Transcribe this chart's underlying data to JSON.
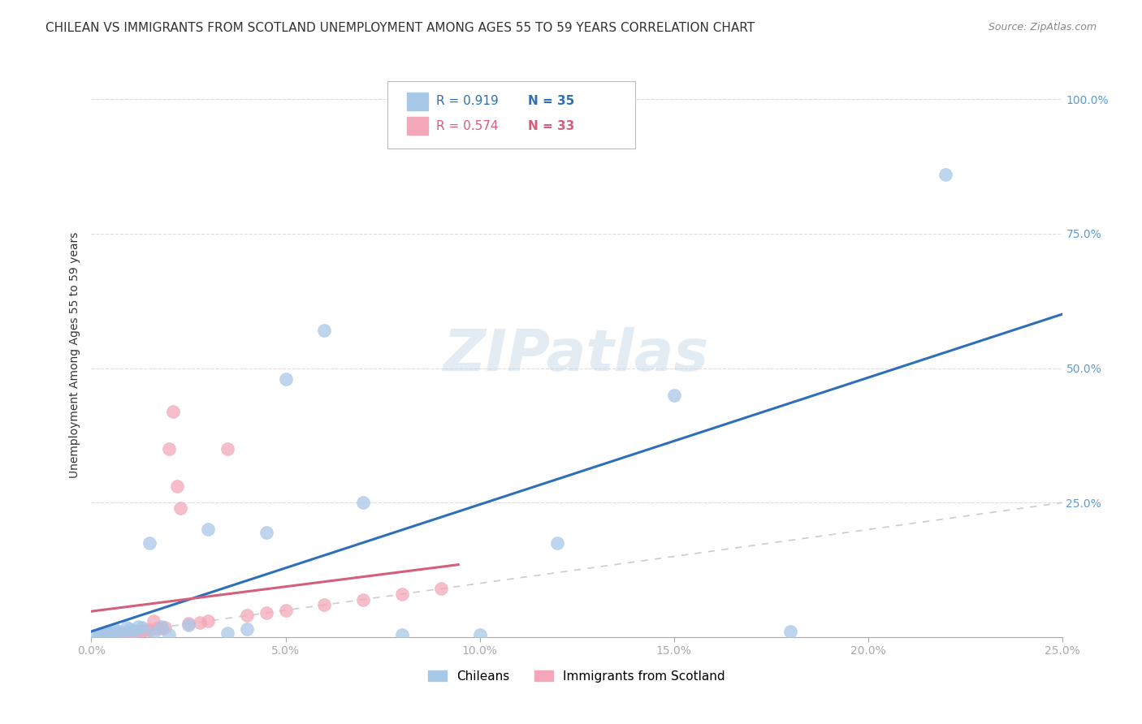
{
  "title": "CHILEAN VS IMMIGRANTS FROM SCOTLAND UNEMPLOYMENT AMONG AGES 55 TO 59 YEARS CORRELATION CHART",
  "source": "Source: ZipAtlas.com",
  "tick_color": "#5b9bd5",
  "ylabel": "Unemployment Among Ages 55 to 59 years",
  "R_chilean": 0.919,
  "N_chilean": 35,
  "R_scotland": 0.574,
  "N_scotland": 33,
  "chilean_color": "#a8c8e8",
  "chilean_line_color": "#2e6fba",
  "scotland_color": "#f4a7b9",
  "scotland_line_color": "#d45f7a",
  "diagonal_color": "#cccccc",
  "background_color": "#ffffff",
  "grid_color": "#dddddd",
  "watermark_text": "ZIPatlas",
  "xmin": 0.0,
  "xmax": 0.25,
  "ymin": 0.0,
  "ymax": 1.05,
  "xticks": [
    0.0,
    0.05,
    0.1,
    0.15,
    0.2,
    0.25
  ],
  "yticks": [
    0.0,
    0.25,
    0.5,
    0.75,
    1.0
  ],
  "xtick_labels": [
    "0.0%",
    "5.0%",
    "10.0%",
    "15.0%",
    "20.0%",
    "25.0%"
  ],
  "ytick_labels": [
    "",
    "25.0%",
    "50.0%",
    "75.0%",
    "100.0%"
  ],
  "title_fontsize": 11,
  "axis_label_fontsize": 10,
  "tick_fontsize": 10,
  "legend_fontsize": 11,
  "watermark_fontsize": 52,
  "watermark_color": "#c8d8e8",
  "watermark_alpha": 0.5,
  "chilean_x": [
    0.001,
    0.002,
    0.002,
    0.003,
    0.003,
    0.004,
    0.004,
    0.005,
    0.005,
    0.006,
    0.007,
    0.008,
    0.009,
    0.01,
    0.011,
    0.012,
    0.013,
    0.015,
    0.016,
    0.018,
    0.02,
    0.025,
    0.03,
    0.035,
    0.04,
    0.045,
    0.05,
    0.06,
    0.07,
    0.08,
    0.1,
    0.12,
    0.15,
    0.18,
    0.22
  ],
  "chilean_y": [
    0.003,
    0.002,
    0.005,
    0.004,
    0.008,
    0.006,
    0.01,
    0.005,
    0.012,
    0.015,
    0.01,
    0.008,
    0.018,
    0.015,
    0.012,
    0.02,
    0.018,
    0.175,
    0.008,
    0.02,
    0.005,
    0.022,
    0.2,
    0.008,
    0.015,
    0.195,
    0.48,
    0.57,
    0.25,
    0.005,
    0.005,
    0.175,
    0.45,
    0.01,
    0.86
  ],
  "scotland_x": [
    0.002,
    0.003,
    0.004,
    0.005,
    0.006,
    0.007,
    0.008,
    0.009,
    0.01,
    0.011,
    0.012,
    0.013,
    0.014,
    0.015,
    0.016,
    0.017,
    0.018,
    0.019,
    0.02,
    0.021,
    0.022,
    0.023,
    0.025,
    0.028,
    0.03,
    0.035,
    0.04,
    0.045,
    0.05,
    0.06,
    0.07,
    0.08,
    0.09
  ],
  "scotland_y": [
    0.001,
    0.002,
    0.003,
    0.004,
    0.005,
    0.006,
    0.007,
    0.008,
    0.01,
    0.009,
    0.011,
    0.012,
    0.013,
    0.014,
    0.03,
    0.017,
    0.016,
    0.018,
    0.35,
    0.42,
    0.28,
    0.24,
    0.025,
    0.027,
    0.03,
    0.35,
    0.04,
    0.045,
    0.05,
    0.06,
    0.07,
    0.08,
    0.09
  ]
}
